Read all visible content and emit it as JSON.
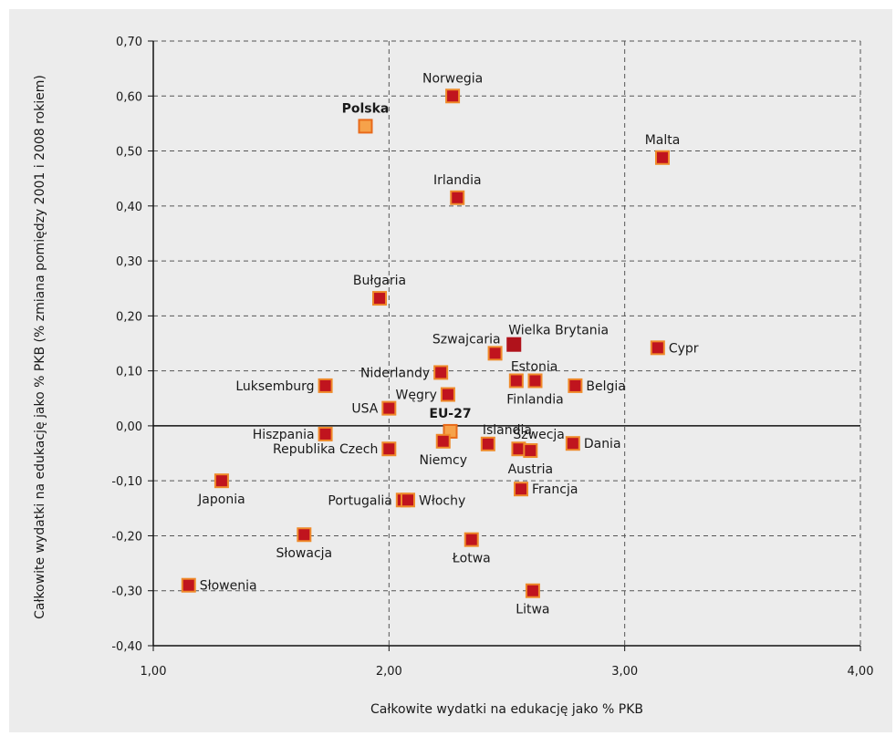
{
  "chart_data": {
    "type": "scatter",
    "xlabel": "Całkowite wydatki na edukację jako % PKB",
    "ylabel": "Całkowite wydatki na edukację jako % PKB (% zmiana pomiędzy 2001 i 2008 rokiem)",
    "xlim": [
      1.0,
      4.0
    ],
    "ylim": [
      -0.4,
      0.7
    ],
    "x_ticks": [
      1.0,
      2.0,
      3.0,
      4.0
    ],
    "x_tick_labels": [
      "1,00",
      "2,00",
      "3,00",
      "4,00"
    ],
    "y_ticks": [
      -0.4,
      -0.3,
      -0.2,
      -0.1,
      0.0,
      0.1,
      0.2,
      0.3,
      0.4,
      0.5,
      0.6,
      0.7
    ],
    "y_tick_labels": [
      "-0,40",
      "-0,30",
      "-0,20",
      "-0,10",
      "0,00",
      "0,10",
      "0,20",
      "0,30",
      "0,40",
      "0,50",
      "0,60",
      "0,70"
    ],
    "grid": true,
    "colors": {
      "default_fill": "#c0141e",
      "default_border": "#ef8a2a",
      "highlight_fill": "#f6a24a",
      "highlight_border": "#e86a1a",
      "uk_fill": "#b0121b",
      "uk_border": "#b0121b"
    },
    "points": [
      {
        "label": "Norwegia",
        "x": 2.27,
        "y": 0.6,
        "style": "default",
        "label_pos": "above"
      },
      {
        "label": "Polska",
        "x": 1.9,
        "y": 0.545,
        "style": "highlight",
        "label_pos": "above",
        "bold": true
      },
      {
        "label": "Malta",
        "x": 3.16,
        "y": 0.488,
        "style": "default",
        "label_pos": "above"
      },
      {
        "label": "Irlandia",
        "x": 2.29,
        "y": 0.415,
        "style": "default",
        "label_pos": "above"
      },
      {
        "label": "Bułgaria",
        "x": 1.96,
        "y": 0.232,
        "style": "default",
        "label_pos": "above"
      },
      {
        "label": "Wielka Brytania",
        "x": 2.53,
        "y": 0.148,
        "style": "uk",
        "label_pos": "above-right"
      },
      {
        "label": "Szwajcaria",
        "x": 2.45,
        "y": 0.132,
        "style": "default",
        "label_pos": "above-left"
      },
      {
        "label": "Cypr",
        "x": 3.14,
        "y": 0.142,
        "style": "default",
        "label_pos": "right"
      },
      {
        "label": "Estonia",
        "x": 2.54,
        "y": 0.082,
        "style": "default",
        "label_pos": "above-right"
      },
      {
        "label": "Finlandia",
        "x": 2.62,
        "y": 0.082,
        "style": "default",
        "label_pos": "below"
      },
      {
        "label": "Niderlandy",
        "x": 2.22,
        "y": 0.097,
        "style": "default",
        "label_pos": "left"
      },
      {
        "label": "Belgia",
        "x": 2.79,
        "y": 0.073,
        "style": "default",
        "label_pos": "right"
      },
      {
        "label": "Luksemburg",
        "x": 1.73,
        "y": 0.073,
        "style": "default",
        "label_pos": "left"
      },
      {
        "label": "Węgry",
        "x": 2.25,
        "y": 0.057,
        "style": "default",
        "label_pos": "left"
      },
      {
        "label": "USA",
        "x": 2.0,
        "y": 0.032,
        "style": "default",
        "label_pos": "left"
      },
      {
        "label": "EU-27",
        "x": 2.26,
        "y": -0.01,
        "style": "highlight",
        "label_pos": "above",
        "bold": true
      },
      {
        "label": "Islandia",
        "x": 2.42,
        "y": -0.033,
        "style": "default",
        "label_pos": "above-right"
      },
      {
        "label": "Szwecja",
        "x": 2.55,
        "y": -0.042,
        "style": "default",
        "label_pos": "above-right"
      },
      {
        "label": "Dania",
        "x": 2.78,
        "y": -0.032,
        "style": "default",
        "label_pos": "right"
      },
      {
        "label": "Niemcy",
        "x": 2.23,
        "y": -0.028,
        "style": "default",
        "label_pos": "below"
      },
      {
        "label": "Austria",
        "x": 2.6,
        "y": -0.045,
        "style": "default",
        "label_pos": "below"
      },
      {
        "label": "Hiszpania",
        "x": 1.73,
        "y": -0.015,
        "style": "default",
        "label_pos": "left"
      },
      {
        "label": "Republika Czech",
        "x": 2.0,
        "y": -0.042,
        "style": "default",
        "label_pos": "left"
      },
      {
        "label": "Japonia",
        "x": 1.29,
        "y": -0.1,
        "style": "default",
        "label_pos": "below"
      },
      {
        "label": "Francja",
        "x": 2.56,
        "y": -0.115,
        "style": "default",
        "label_pos": "right"
      },
      {
        "label": "Portugalia",
        "x": 2.06,
        "y": -0.135,
        "style": "default",
        "label_pos": "left"
      },
      {
        "label": "Włochy",
        "x": 2.08,
        "y": -0.135,
        "style": "default",
        "label_pos": "right"
      },
      {
        "label": "Słowacja",
        "x": 1.64,
        "y": -0.198,
        "style": "default",
        "label_pos": "below"
      },
      {
        "label": "Łotwa",
        "x": 2.35,
        "y": -0.207,
        "style": "default",
        "label_pos": "below"
      },
      {
        "label": "Słowenia",
        "x": 1.15,
        "y": -0.29,
        "style": "default",
        "label_pos": "right"
      },
      {
        "label": "Litwa",
        "x": 2.61,
        "y": -0.3,
        "style": "default",
        "label_pos": "below"
      }
    ]
  }
}
